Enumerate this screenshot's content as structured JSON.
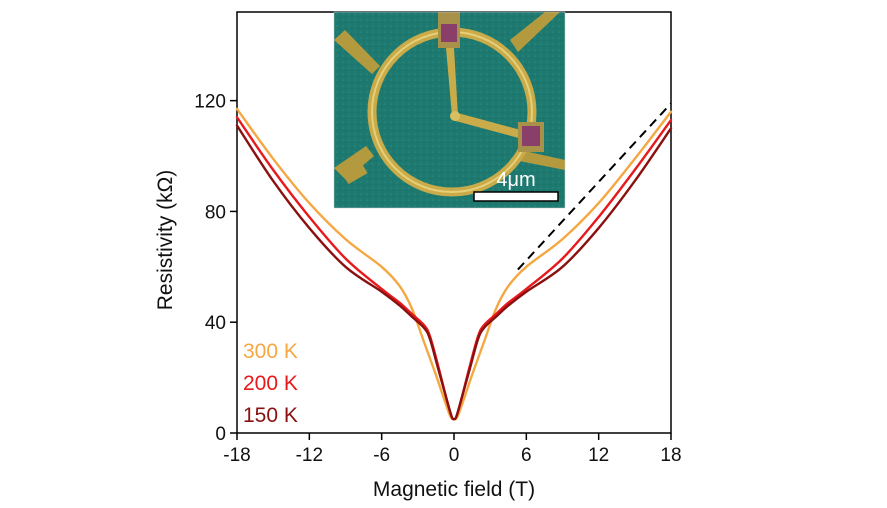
{
  "chart_data": {
    "type": "line",
    "title": "",
    "xlabel": "Magnetic field (T)",
    "ylabel": "Resistivity (kΩ)",
    "xlim": [
      -18,
      18
    ],
    "ylim": [
      0,
      152
    ],
    "xticks": [
      "-18",
      "-12",
      "-6",
      "0",
      "6",
      "12",
      "18"
    ],
    "yticks": [
      "0",
      "40",
      "80",
      "120"
    ],
    "xtick_values": [
      -18,
      -12,
      -6,
      0,
      6,
      12,
      18
    ],
    "ytick_values": [
      0,
      40,
      80,
      120
    ],
    "grid": false,
    "legend_position": "bottom-left",
    "series": [
      {
        "name": "300 K",
        "color": "#F5A742",
        "x": [
          -18,
          -15,
          -12,
          -9,
          -6,
          -4.5,
          -3.5,
          -2.5,
          -1.5,
          -0.8,
          -0.3,
          0,
          0.3,
          0.8,
          1.5,
          2.5,
          3.5,
          4.5,
          6,
          9,
          12,
          15,
          18
        ],
        "y": [
          117,
          99,
          83,
          70,
          60,
          53,
          45,
          33,
          21,
          12,
          6,
          5,
          6,
          12,
          21,
          33,
          45,
          53,
          60,
          70,
          83,
          99,
          116
        ]
      },
      {
        "name": "200 K",
        "color": "#E8191C",
        "x": [
          -18,
          -15,
          -12,
          -9,
          -6,
          -4.5,
          -3.5,
          -2.5,
          -2,
          -1.3,
          -0.6,
          -0.2,
          0,
          0.2,
          0.6,
          1.3,
          2,
          2.5,
          3.5,
          4.5,
          6,
          9,
          12,
          15,
          18
        ],
        "y": [
          114,
          95,
          78,
          63,
          52,
          47,
          43,
          39,
          35,
          24,
          12,
          6,
          5,
          6,
          12,
          24,
          35,
          39,
          43,
          47,
          52,
          63,
          78,
          95,
          113
        ]
      },
      {
        "name": "150 K",
        "color": "#8B1010",
        "x": [
          -18,
          -15,
          -12,
          -9,
          -6,
          -4.5,
          -3.5,
          -2.5,
          -2,
          -1.3,
          -0.6,
          -0.2,
          0,
          0.2,
          0.6,
          1.3,
          2,
          2.5,
          3.5,
          4.5,
          6,
          9,
          12,
          15,
          18
        ],
        "y": [
          111,
          91,
          74,
          60,
          51,
          46,
          42,
          38,
          34,
          23,
          12,
          6,
          5,
          6,
          12,
          23,
          34,
          38,
          42,
          46,
          51,
          60,
          74,
          91,
          110
        ]
      }
    ],
    "annotations": [
      {
        "type": "dashed-line",
        "name": "linear-guide",
        "color": "#000000",
        "x": [
          5.3,
          18
        ],
        "y": [
          59,
          119
        ]
      }
    ],
    "inset": {
      "description_type": "micrograph",
      "scale_bar_label": "4μm"
    }
  }
}
